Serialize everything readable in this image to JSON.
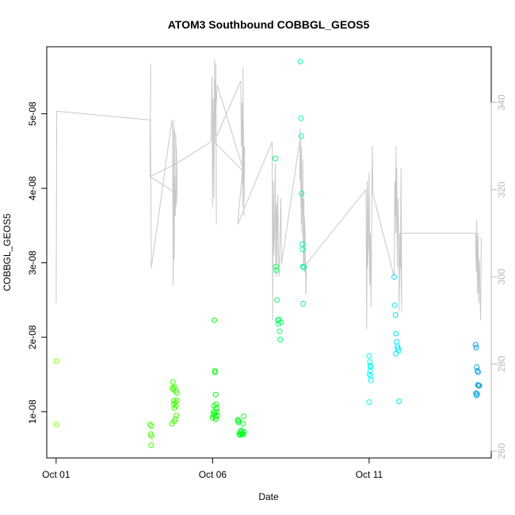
{
  "chart_data": {
    "type": "scatter",
    "title": "ATOM3 Southbound COBBGL_GEOS5",
    "xlabel": "Date",
    "ylabel": "COBBGL_GEOS5",
    "x_ticks": [
      "Oct 01",
      "Oct 06",
      "Oct 11"
    ],
    "x_tick_values": [
      0,
      5,
      10
    ],
    "xlim": [
      -0.3,
      13.9
    ],
    "ylim": [
      3.8e-09,
      5.9e-08
    ],
    "y_ticks": [
      "1e-08",
      "2e-08",
      "3e-08",
      "4e-08",
      "5e-08"
    ],
    "y_tick_values": [
      1e-08,
      2e-08,
      3e-08,
      4e-08,
      5e-08
    ],
    "y2lim": [
      258.4,
      352.8
    ],
    "y2_ticks": [
      "260",
      "280",
      "300",
      "320",
      "340"
    ],
    "y2_tick_values": [
      260,
      280,
      300,
      320,
      340
    ],
    "line_color": "#c8c8c8",
    "point_series": [
      {
        "color": "#80ff00",
        "x": [
          0.01,
          0.01
        ],
        "y": [
          1.68e-08,
          8.3e-09
        ]
      },
      {
        "color": "#40ff00",
        "x": [
          3.0,
          3.02,
          3.05,
          3.03,
          3.04,
          3.72,
          3.73,
          3.74,
          3.76,
          3.78,
          3.8,
          3.82,
          3.79,
          3.83,
          3.86,
          3.85,
          3.84,
          3.81,
          3.77,
          3.7,
          3.75
        ],
        "y": [
          8.3e-09,
          7e-09,
          6.7e-09,
          5.5e-09,
          8.1e-09,
          1.32e-08,
          1.4e-08,
          1.3e-08,
          1.15e-08,
          1.05e-08,
          1.12e-08,
          1.28e-08,
          1.33e-08,
          1.08e-08,
          1.25e-08,
          1.15e-08,
          9.5e-09,
          9e-09,
          8.7e-09,
          8.4e-09,
          1.1e-08
        ]
      },
      {
        "color": "#00ff00",
        "x": [
          5.05,
          5.07,
          5.08,
          5.1,
          5.12,
          5.06,
          5.09,
          5.11,
          5.13,
          5.15,
          5.1,
          5.0,
          5.03,
          5.04,
          5.02
        ],
        "y": [
          2.23e-08,
          1.55e-08,
          1.53e-08,
          1.23e-08,
          1.05e-08,
          9.8e-09,
          9.3e-09,
          1.1e-08,
          1e-08,
          9.5e-09,
          9e-09,
          9.2e-09,
          1e-08,
          1.08e-08,
          9.6e-09
        ]
      },
      {
        "color": "#00ff20",
        "x": [
          5.8,
          5.82,
          5.85,
          5.88,
          5.9,
          5.92,
          5.95,
          5.97,
          5.99,
          6.0,
          5.87,
          5.83,
          5.93,
          5.98
        ],
        "y": [
          8.9e-09,
          8.6e-09,
          7e-09,
          7.4e-09,
          6.9e-09,
          7.2e-09,
          7e-09,
          8.4e-09,
          9.4e-09,
          7.3e-09,
          6.9e-09,
          8.8e-09,
          7.5e-09,
          7e-09
        ]
      },
      {
        "color": "#00ff60",
        "x": [
          7.0,
          7.02,
          7.04,
          7.06,
          7.08,
          7.1,
          7.12,
          7.14,
          7.16,
          7.18
        ],
        "y": [
          4.4e-08,
          2.95e-08,
          2.9e-08,
          2.5e-08,
          2.23e-08,
          2.18e-08,
          2.24e-08,
          2.08e-08,
          1.97e-08,
          2.2e-08
        ]
      },
      {
        "color": "#00ffa0",
        "x": [
          7.8,
          7.82,
          7.83,
          7.84,
          7.86,
          7.87,
          7.88,
          7.9,
          7.89,
          7.91
        ],
        "y": [
          5.7e-08,
          4.94e-08,
          4.7e-08,
          3.93e-08,
          3.25e-08,
          3.18e-08,
          2.95e-08,
          2.94e-08,
          2.45e-08,
          2.94e-08
        ]
      },
      {
        "color": "#00ffff",
        "x": [
          10.0,
          10.02,
          10.04,
          10.03,
          10.05,
          10.06,
          10.01,
          10.04,
          10.0
        ],
        "y": [
          1.75e-08,
          1.67e-08,
          1.6e-08,
          1.55e-08,
          1.48e-08,
          1.42e-08,
          1.5e-08,
          1.62e-08,
          1.13e-08
        ]
      },
      {
        "color": "#00e8ff",
        "x": [
          10.8,
          10.82,
          10.84,
          10.86,
          10.88,
          10.9,
          10.92,
          10.94,
          10.85,
          10.95
        ],
        "y": [
          2.81e-08,
          2.43e-08,
          2.3e-08,
          2.05e-08,
          1.94e-08,
          1.88e-08,
          1.85e-08,
          1.82e-08,
          1.78e-08,
          1.14e-08
        ]
      },
      {
        "color": "#0aa0e0",
        "x": [
          13.4,
          13.42,
          13.44,
          13.46,
          13.48,
          13.5,
          13.41,
          13.43,
          13.47,
          13.52,
          13.45
        ],
        "y": [
          1.9e-08,
          1.86e-08,
          1.6e-08,
          1.55e-08,
          1.53e-08,
          1.35e-08,
          1.25e-08,
          1.22e-08,
          1.36e-08,
          1.35e-08,
          1.24e-08
        ]
      }
    ],
    "line_series": {
      "x": [
        0.0,
        0.02,
        3.0,
        3.0,
        3.02,
        3.0,
        3.01,
        3.04,
        3.7,
        3.72,
        3.74,
        3.76,
        3.75,
        3.78,
        3.77,
        3.79,
        3.81,
        3.8,
        3.83,
        3.82,
        3.85,
        3.84,
        3.86,
        3.86,
        3.0,
        3.85,
        4.95,
        4.96,
        4.97,
        4.98,
        4.99,
        5.0,
        5.02,
        5.04,
        5.06,
        5.05,
        5.08,
        5.07,
        5.1,
        5.12,
        5.11,
        5.15,
        6.0,
        5.05,
        5.9,
        5.92,
        5.94,
        5.96,
        5.95,
        5.98,
        5.97,
        5.99,
        6.0,
        6.02,
        5.8,
        6.9,
        6.92,
        6.94,
        6.96,
        6.98,
        7.0,
        7.02,
        7.04,
        7.06,
        7.05,
        7.08,
        7.1,
        7.12,
        7.14,
        7.16,
        7.18,
        7.2,
        7.8,
        7.78,
        7.8,
        7.82,
        7.84,
        7.83,
        7.86,
        7.85,
        7.88,
        7.9,
        7.89,
        7.92,
        7.91,
        7.94,
        7.93,
        7.96,
        7.98,
        8.0,
        9.9,
        9.92,
        9.94,
        9.96,
        9.95,
        9.98,
        10.0,
        10.02,
        10.04,
        10.06,
        10.08,
        10.1,
        10.12,
        10.8,
        10.82,
        10.84,
        10.86,
        10.85,
        10.88,
        10.9,
        10.92,
        10.94,
        10.96,
        10.98,
        11.0,
        11.02,
        11.04,
        11.0,
        13.4,
        13.42,
        13.44,
        13.46,
        13.48,
        13.5,
        13.52,
        13.54,
        13.56,
        13.58
      ],
      "y": [
        294,
        338,
        336,
        326,
        349,
        323,
        336,
        302,
        336,
        333,
        298,
        336,
        317,
        334,
        304,
        323,
        314,
        320,
        316,
        333,
        317,
        330,
        323,
        319,
        323,
        326,
        331,
        337,
        343,
        346,
        337,
        316,
        341,
        318,
        350,
        335,
        345,
        332,
        349,
        312,
        339,
        344,
        324,
        331,
        345,
        330,
        340,
        316,
        336,
        321,
        348,
        326,
        314,
        330,
        312,
        331,
        290,
        322,
        305,
        311,
        326,
        300,
        317,
        307,
        303,
        319,
        305,
        300,
        305,
        311,
        318,
        303,
        332,
        322,
        334,
        316,
        330,
        312,
        320,
        310,
        327,
        303,
        310,
        318,
        306,
        301,
        314,
        309,
        296,
        303,
        320,
        288,
        322,
        314,
        302,
        307,
        324,
        298,
        310,
        293,
        314,
        330,
        319,
        300,
        322,
        314,
        330,
        310,
        325,
        302,
        318,
        309,
        292,
        310,
        302,
        325,
        292,
        310,
        310,
        301,
        313,
        296,
        310,
        294,
        304,
        296,
        290,
        309
      ]
    }
  }
}
